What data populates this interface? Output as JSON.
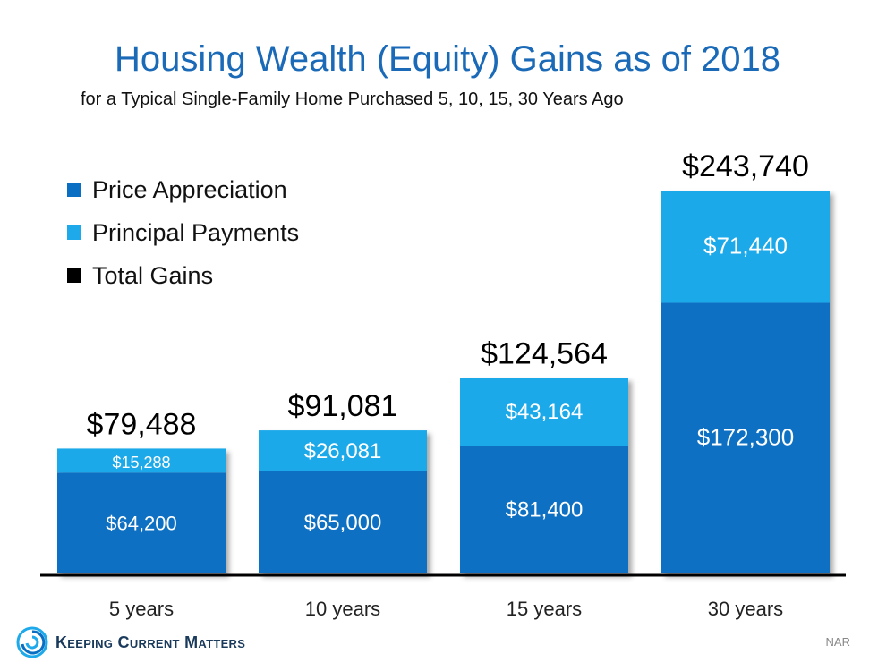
{
  "colors": {
    "price_appreciation": "#0a6fc2",
    "principal_payments": "#1ea9ea",
    "total_gains": "#000000",
    "title": "#1a6ab8"
  },
  "chart_data": {
    "type": "bar",
    "stacked": true,
    "title": "Housing Wealth (Equity) Gains as of 2018",
    "subtitle": "for a Typical Single-Family Home Purchased 5, 10, 15, 30 Years Ago",
    "categories": [
      "5 years",
      "10 years",
      "15 years",
      "30 years"
    ],
    "series": [
      {
        "name": "Price Appreciation",
        "values": [
          64200,
          65000,
          81400,
          172300
        ],
        "labels": [
          "$64,200",
          "$65,000",
          "$81,400",
          "$172,300"
        ]
      },
      {
        "name": "Principal Payments",
        "values": [
          15288,
          26081,
          43164,
          71440
        ],
        "labels": [
          "$15,288",
          "$26,081",
          "$43,164",
          "$71,440"
        ]
      }
    ],
    "totals": {
      "name": "Total Gains",
      "values": [
        79488,
        91081,
        124564,
        243740
      ],
      "labels": [
        "$79,488",
        "$91,081",
        "$124,564",
        "$243,740"
      ]
    },
    "ylim": [
      0,
      250000
    ],
    "grid": false,
    "legend_position": "top-left"
  },
  "source": "NAR",
  "logo_text": "Keeping Current Matters",
  "logo_icon": "swirl-logo-icon"
}
